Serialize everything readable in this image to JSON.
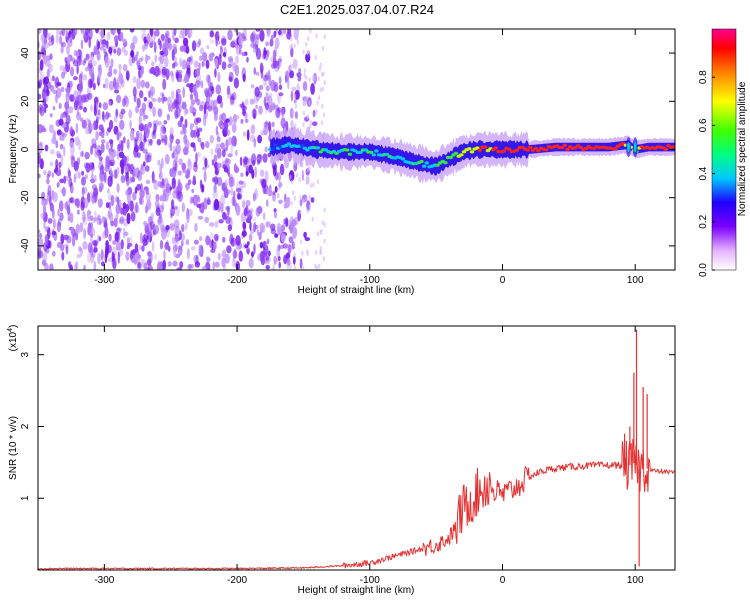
{
  "title": "C2E1.2025.037.04.07.R24",
  "chart_data": [
    {
      "type": "heatmap",
      "xlabel": "Height of straight line (km)",
      "ylabel": "Frequency (Hz)",
      "xlim": [
        -350,
        130
      ],
      "ylim": [
        -50,
        50
      ],
      "xticks": [
        -300,
        -200,
        -100,
        0,
        100
      ],
      "yticks": [
        -40,
        -20,
        0,
        20,
        40
      ],
      "noise_region_x": [
        -350,
        -160
      ],
      "signal_ridge": {
        "x": [
          -175,
          -160,
          -140,
          -120,
          -100,
          -80,
          -60,
          -50,
          -40,
          -30,
          -20,
          -10,
          0,
          20,
          40,
          60,
          80,
          95,
          100,
          110,
          130
        ],
        "freq_hz": [
          1,
          2,
          0,
          -1,
          -1,
          -3,
          -6,
          -7,
          -4,
          -1,
          0,
          0,
          0,
          0,
          1,
          1,
          1,
          2,
          0,
          1,
          1
        ],
        "amplitude": [
          0.3,
          0.4,
          0.45,
          0.45,
          0.5,
          0.45,
          0.45,
          0.5,
          0.6,
          0.7,
          0.75,
          0.8,
          0.85,
          0.9,
          0.9,
          0.9,
          0.95,
          0.7,
          0.6,
          0.95,
          0.95
        ]
      },
      "colorbar": {
        "label": "Normalized spectral amplitude",
        "range": [
          0,
          1
        ],
        "ticks": [
          0.0,
          0.2,
          0.4,
          0.6,
          0.8
        ],
        "tick_labels": [
          "0.0",
          "0.2",
          "0.4",
          "0.6",
          "0.8"
        ]
      }
    },
    {
      "type": "line",
      "xlabel": "Height of straight line (km)",
      "ylabel": "SNR (10 * v/v)",
      "yscale_label": "(x10",
      "yscale_exp": "4",
      "yscale_close": ")",
      "xlim": [
        -350,
        130
      ],
      "ylim": [
        0,
        3.4
      ],
      "xticks": [
        -300,
        -200,
        -100,
        0,
        100
      ],
      "yticks": [
        1,
        2,
        3
      ],
      "color": "#e53030",
      "series": [
        {
          "name": "SNR",
          "x": [
            -350,
            -200,
            -150,
            -120,
            -100,
            -90,
            -80,
            -70,
            -60,
            -50,
            -40,
            -35,
            -30,
            -25,
            -20,
            -15,
            -10,
            -5,
            0,
            10,
            20,
            30,
            40,
            60,
            80,
            90,
            95,
            100,
            103,
            106,
            110,
            115,
            120,
            130
          ],
          "y": [
            0.02,
            0.02,
            0.03,
            0.06,
            0.1,
            0.15,
            0.2,
            0.25,
            0.3,
            0.35,
            0.45,
            0.6,
            0.85,
            0.95,
            1.05,
            1.15,
            1.2,
            1.1,
            1.05,
            1.15,
            1.3,
            1.38,
            1.42,
            1.45,
            1.46,
            1.46,
            1.45,
            1.5,
            1.4,
            1.45,
            1.4,
            1.38,
            1.37,
            1.36
          ]
        }
      ],
      "spikes": [
        {
          "x": 101,
          "y": 3.35
        },
        {
          "x": 103,
          "y": 0.05
        },
        {
          "x": 99,
          "y": 2.75
        },
        {
          "x": 106,
          "y": 2.55
        },
        {
          "x": 109,
          "y": 2.45
        },
        {
          "x": 96,
          "y": 2.0
        },
        {
          "x": 92,
          "y": 1.9
        }
      ]
    }
  ]
}
